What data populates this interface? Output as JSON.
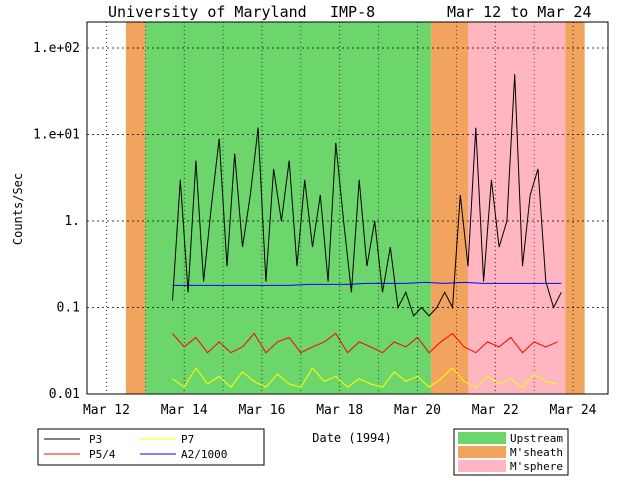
{
  "chart_data": {
    "type": "line",
    "title": {
      "institution": "University of Maryland",
      "spacecraft": "IMP-8",
      "date_range": "Mar 12 to Mar 24"
    },
    "xlabel": "Date (1994)",
    "ylabel": "Counts/Sec",
    "y_scale": "log",
    "ylim": [
      0.01,
      200
    ],
    "xlim": [
      11.5,
      24.9
    ],
    "x_ticks": [
      {
        "value": 12,
        "label": "Mar 12"
      },
      {
        "value": 14,
        "label": "Mar 14"
      },
      {
        "value": 16,
        "label": "Mar 16"
      },
      {
        "value": 18,
        "label": "Mar 18"
      },
      {
        "value": 20,
        "label": "Mar 20"
      },
      {
        "value": 22,
        "label": "Mar 22"
      },
      {
        "value": 24,
        "label": "Mar 24"
      }
    ],
    "y_ticks": [
      {
        "value": 100,
        "label": "1.e+02"
      },
      {
        "value": 10,
        "label": "1.e+01"
      },
      {
        "value": 1,
        "label": "1."
      },
      {
        "value": 0.1,
        "label": "0.1"
      },
      {
        "value": 0.01,
        "label": "0.01"
      }
    ],
    "regions": [
      {
        "type": "M'sheath",
        "start": 12.5,
        "end": 13.0,
        "color": "#f2a35d"
      },
      {
        "type": "Upstream",
        "start": 13.0,
        "end": 20.35,
        "color": "#6cd66c"
      },
      {
        "type": "M'sheath",
        "start": 20.35,
        "end": 21.3,
        "color": "#f2a35d"
      },
      {
        "type": "M'sphere",
        "start": 21.3,
        "end": 23.8,
        "color": "#ffb6c1"
      },
      {
        "type": "M'sheath",
        "start": 23.8,
        "end": 24.3,
        "color": "#f2a35d"
      }
    ],
    "series": [
      {
        "name": "P3",
        "color": "#000000",
        "x": [
          13.7,
          13.9,
          14.1,
          14.3,
          14.5,
          14.7,
          14.9,
          15.1,
          15.3,
          15.5,
          15.7,
          15.9,
          16.1,
          16.3,
          16.5,
          16.7,
          16.9,
          17.1,
          17.3,
          17.5,
          17.7,
          17.9,
          18.1,
          18.3,
          18.5,
          18.7,
          18.9,
          19.1,
          19.3,
          19.5,
          19.7,
          19.9,
          20.1,
          20.3,
          20.5,
          20.7,
          20.9,
          21.1,
          21.3,
          21.5,
          21.7,
          21.9,
          22.1,
          22.3,
          22.5,
          22.7,
          22.9,
          23.1,
          23.3,
          23.5,
          23.7
        ],
        "y": [
          0.12,
          3.0,
          0.15,
          5.0,
          0.2,
          1.5,
          9.0,
          0.3,
          6.0,
          0.5,
          2.0,
          12.0,
          0.2,
          4.0,
          1.0,
          5.0,
          0.3,
          3.0,
          0.5,
          2.0,
          0.2,
          8.0,
          1.0,
          0.15,
          3.0,
          0.3,
          1.0,
          0.15,
          0.5,
          0.1,
          0.15,
          0.08,
          0.1,
          0.08,
          0.1,
          0.15,
          0.1,
          2.0,
          0.3,
          12.0,
          0.2,
          3.0,
          0.5,
          1.0,
          50.0,
          0.3,
          2.0,
          4.0,
          0.2,
          0.1,
          0.15
        ]
      },
      {
        "name": "P5/4",
        "color": "#ff0000",
        "x": [
          13.7,
          14.0,
          14.3,
          14.6,
          14.9,
          15.2,
          15.5,
          15.8,
          16.1,
          16.4,
          16.7,
          17.0,
          17.3,
          17.6,
          17.9,
          18.2,
          18.5,
          18.8,
          19.1,
          19.4,
          19.7,
          20.0,
          20.3,
          20.6,
          20.9,
          21.2,
          21.5,
          21.8,
          22.1,
          22.4,
          22.7,
          23.0,
          23.3,
          23.6
        ],
        "y": [
          0.05,
          0.035,
          0.045,
          0.03,
          0.04,
          0.03,
          0.035,
          0.05,
          0.03,
          0.04,
          0.045,
          0.03,
          0.035,
          0.04,
          0.05,
          0.03,
          0.04,
          0.035,
          0.03,
          0.04,
          0.035,
          0.045,
          0.03,
          0.04,
          0.05,
          0.035,
          0.03,
          0.04,
          0.035,
          0.045,
          0.03,
          0.04,
          0.035,
          0.04
        ]
      },
      {
        "name": "P7",
        "color": "#ffff00",
        "x": [
          13.7,
          14.0,
          14.3,
          14.6,
          14.9,
          15.2,
          15.5,
          15.8,
          16.1,
          16.4,
          16.7,
          17.0,
          17.3,
          17.6,
          17.9,
          18.2,
          18.5,
          18.8,
          19.1,
          19.4,
          19.7,
          20.0,
          20.3,
          20.6,
          20.9,
          21.2,
          21.5,
          21.8,
          22.1,
          22.4,
          22.7,
          23.0,
          23.3,
          23.6
        ],
        "y": [
          0.015,
          0.012,
          0.02,
          0.013,
          0.016,
          0.012,
          0.018,
          0.014,
          0.012,
          0.017,
          0.013,
          0.012,
          0.02,
          0.014,
          0.016,
          0.012,
          0.015,
          0.013,
          0.012,
          0.018,
          0.014,
          0.016,
          0.012,
          0.015,
          0.02,
          0.014,
          0.012,
          0.016,
          0.013,
          0.015,
          0.012,
          0.017,
          0.014,
          0.013
        ]
      },
      {
        "name": "A2/1000",
        "color": "#0000ff",
        "x": [
          13.7,
          14.2,
          14.7,
          15.2,
          15.7,
          16.2,
          16.7,
          17.2,
          17.7,
          18.2,
          18.7,
          19.2,
          19.7,
          20.2,
          20.7,
          21.2,
          21.7,
          22.2,
          22.7,
          23.2,
          23.7
        ],
        "y": [
          0.18,
          0.18,
          0.18,
          0.18,
          0.18,
          0.18,
          0.18,
          0.185,
          0.185,
          0.185,
          0.19,
          0.19,
          0.19,
          0.195,
          0.19,
          0.195,
          0.19,
          0.19,
          0.19,
          0.19,
          0.19
        ]
      }
    ],
    "legend": {
      "series_entries": [
        "P3",
        "P5/4",
        "P7",
        "A2/1000"
      ],
      "region_entries": [
        {
          "label": "Upstream",
          "color": "#6cd66c"
        },
        {
          "label": "M'sheath",
          "color": "#f2a35d"
        },
        {
          "label": "M'sphere",
          "color": "#ffb6c1"
        }
      ],
      "position": "bottom"
    }
  }
}
